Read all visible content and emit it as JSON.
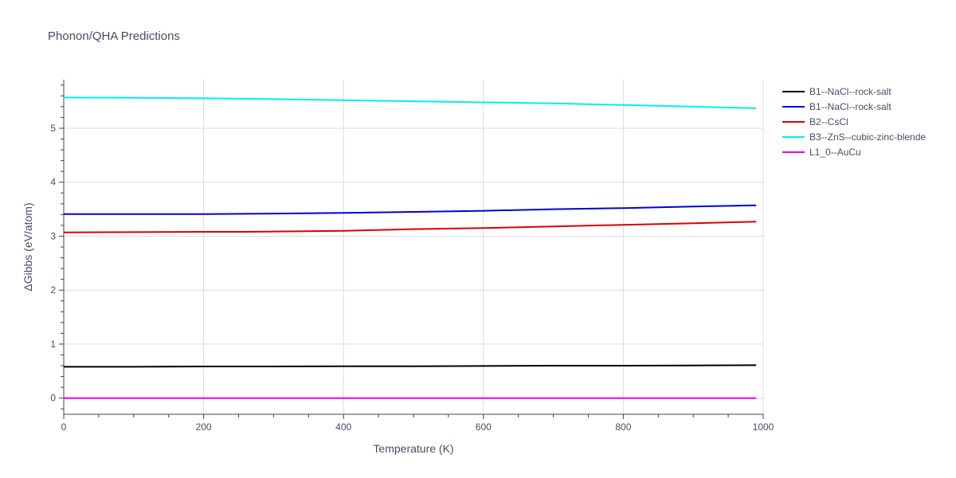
{
  "chart_data": {
    "type": "line",
    "title": "Phonon/QHA Predictions",
    "xlabel": "Temperature (K)",
    "ylabel": "ΔGibbs (eV/atom)",
    "xlim": [
      0,
      1000
    ],
    "ylim": [
      -0.3,
      5.9
    ],
    "xticks": [
      0,
      200,
      400,
      600,
      800,
      1000
    ],
    "yticks": [
      0,
      1,
      2,
      3,
      4,
      5
    ],
    "grid": true,
    "legend_position": "right",
    "series": [
      {
        "name": "B1--NaCl--rock-salt",
        "color": "#000000",
        "x": [
          0,
          100,
          200,
          300,
          400,
          500,
          600,
          700,
          800,
          900,
          990
        ],
        "y": [
          0.58,
          0.58,
          0.585,
          0.585,
          0.59,
          0.59,
          0.595,
          0.6,
          0.6,
          0.605,
          0.61
        ]
      },
      {
        "name": "B1--NaCl--rock-salt",
        "color": "#0000dd",
        "x": [
          0,
          100,
          200,
          280,
          400,
          500,
          600,
          700,
          800,
          900,
          990
        ],
        "y": [
          3.41,
          3.41,
          3.41,
          3.415,
          3.43,
          3.45,
          3.47,
          3.5,
          3.52,
          3.55,
          3.57
        ]
      },
      {
        "name": "B2--CsCl",
        "color": "#dd0000",
        "x": [
          0,
          100,
          200,
          260,
          400,
          500,
          600,
          700,
          800,
          900,
          990
        ],
        "y": [
          3.07,
          3.075,
          3.08,
          3.08,
          3.1,
          3.13,
          3.15,
          3.18,
          3.21,
          3.24,
          3.27
        ]
      },
      {
        "name": "B3--ZnS--cubic-zinc-blende",
        "color": "#00eeee",
        "x": [
          0,
          100,
          200,
          300,
          400,
          500,
          600,
          700,
          800,
          900,
          990
        ],
        "y": [
          5.57,
          5.565,
          5.555,
          5.54,
          5.52,
          5.5,
          5.48,
          5.46,
          5.43,
          5.4,
          5.37
        ]
      },
      {
        "name": "L1_0--AuCu",
        "color": "#ee00ee",
        "x": [
          0,
          100,
          200,
          300,
          400,
          500,
          600,
          700,
          800,
          900,
          990
        ],
        "y": [
          0,
          0,
          0,
          0,
          0,
          0,
          0,
          0,
          0,
          0,
          0
        ]
      }
    ]
  }
}
